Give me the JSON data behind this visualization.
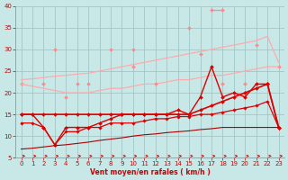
{
  "x": [
    0,
    1,
    2,
    3,
    4,
    5,
    6,
    7,
    8,
    9,
    10,
    11,
    12,
    13,
    14,
    15,
    16,
    17,
    18,
    19,
    20,
    21,
    22,
    23
  ],
  "series": [
    {
      "name": "pink_jagged_top",
      "color": "#ff8888",
      "linewidth": 0.9,
      "marker": "D",
      "markersize": 2.0,
      "values": [
        22,
        null,
        null,
        30,
        null,
        22,
        null,
        null,
        30,
        null,
        30,
        null,
        null,
        null,
        null,
        35,
        null,
        39,
        39,
        null,
        null,
        31,
        null,
        26
      ]
    },
    {
      "name": "pink_upper_trend",
      "color": "#ffaaaa",
      "linewidth": 0.9,
      "marker": null,
      "markersize": 0,
      "values": [
        23,
        23.2,
        23.5,
        23.8,
        24,
        24.3,
        24.5,
        25,
        25.5,
        26,
        26.5,
        27,
        27.5,
        28,
        28.5,
        29,
        29.5,
        30,
        30.5,
        31,
        31.5,
        32,
        33,
        27
      ]
    },
    {
      "name": "pink_lower_trend",
      "color": "#ffaaaa",
      "linewidth": 0.9,
      "marker": null,
      "markersize": 0,
      "values": [
        22,
        21.5,
        21,
        20.5,
        20,
        20,
        20,
        20.5,
        21,
        21,
        21.5,
        22,
        22,
        22.5,
        23,
        23,
        23.5,
        24,
        24,
        24.5,
        25,
        25.5,
        26,
        26
      ]
    },
    {
      "name": "pink_mid_jagged",
      "color": "#ff8888",
      "linewidth": 0.9,
      "marker": "D",
      "markersize": 2.0,
      "values": [
        null,
        null,
        22,
        null,
        19,
        null,
        22,
        null,
        null,
        null,
        26,
        null,
        22,
        null,
        null,
        null,
        29,
        null,
        22,
        null,
        22,
        null,
        22,
        null
      ]
    },
    {
      "name": "red_upper_jagged",
      "color": "#dd0000",
      "linewidth": 1.0,
      "marker": "D",
      "markersize": 2.0,
      "values": [
        15,
        15,
        12,
        8,
        12,
        12,
        12,
        13,
        14,
        15,
        15,
        15,
        15,
        15,
        16,
        15,
        19,
        26,
        19,
        20,
        19,
        22,
        22,
        12
      ]
    },
    {
      "name": "red_flat",
      "color": "#dd0000",
      "linewidth": 1.2,
      "marker": "D",
      "markersize": 2.0,
      "values": [
        15,
        15,
        15,
        15,
        15,
        15,
        15,
        15,
        15,
        15,
        15,
        15,
        15,
        15,
        15,
        15,
        16,
        17,
        18,
        19,
        20,
        21,
        22,
        12
      ]
    },
    {
      "name": "red_lower_trend1",
      "color": "#dd0000",
      "linewidth": 0.9,
      "marker": "D",
      "markersize": 1.8,
      "values": [
        13,
        13,
        12,
        8,
        11,
        11,
        12,
        12,
        13,
        13,
        13,
        13.5,
        14,
        14,
        14.5,
        14.5,
        15,
        15,
        15.5,
        16,
        16.5,
        17,
        18,
        12
      ]
    },
    {
      "name": "dark_red_lower_trend2",
      "color": "#aa0000",
      "linewidth": 0.8,
      "marker": null,
      "markersize": 0,
      "values": [
        7,
        7.2,
        7.5,
        7.8,
        8,
        8.3,
        8.6,
        9,
        9.3,
        9.6,
        10,
        10.3,
        10.5,
        10.8,
        11,
        11.2,
        11.5,
        11.7,
        12,
        12,
        12,
        12,
        12,
        12
      ]
    }
  ],
  "xlabel": "Vent moyen/en rafales ( km/h )",
  "ylim": [
    5,
    40
  ],
  "xlim": [
    -0.5,
    23.5
  ],
  "yticks": [
    5,
    10,
    15,
    20,
    25,
    30,
    35,
    40
  ],
  "xticks": [
    0,
    1,
    2,
    3,
    4,
    5,
    6,
    7,
    8,
    9,
    10,
    11,
    12,
    13,
    14,
    15,
    16,
    17,
    18,
    19,
    20,
    21,
    22,
    23
  ],
  "bg_color": "#c8e8e8",
  "grid_color": "#9bbfbf",
  "arrow_color": "#cc0000",
  "label_color": "#cc0000"
}
